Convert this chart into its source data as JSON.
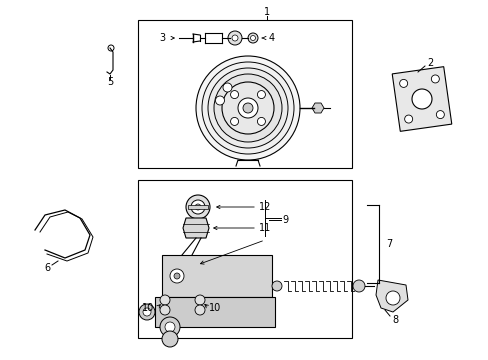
{
  "bg_color": "#ffffff",
  "line_color": "#000000",
  "figw": 4.89,
  "figh": 3.6,
  "dpi": 100
}
